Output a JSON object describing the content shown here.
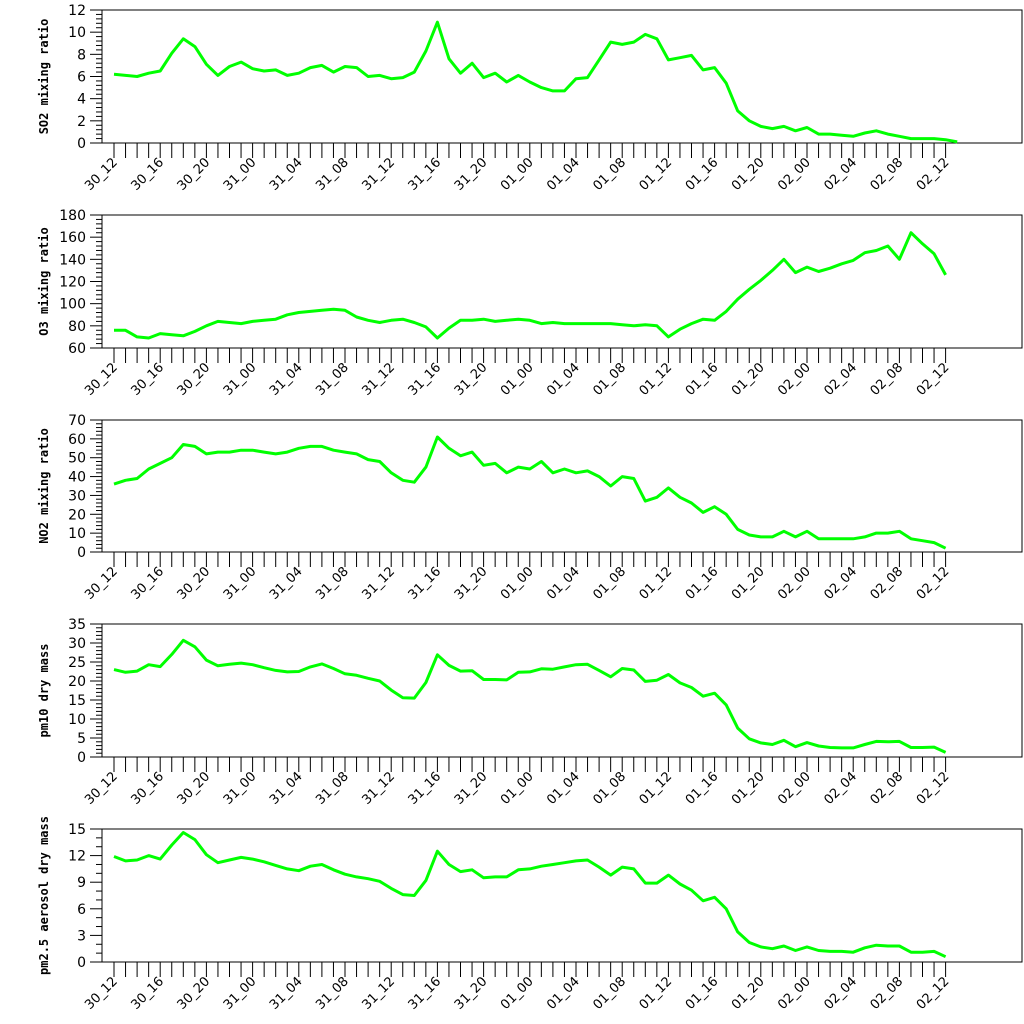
{
  "chart_data": [
    {
      "type": "line",
      "ylabel": "SO2 mixing ratio",
      "ylim": [
        0,
        12
      ],
      "yticks": [
        0,
        2,
        4,
        6,
        8,
        10,
        12
      ],
      "yminor": 4,
      "xticklabels": [
        "30_12",
        "30_16",
        "30_20",
        "31_00",
        "31_04",
        "31_08",
        "31_12",
        "31_16",
        "31_20",
        "01_00",
        "01_04",
        "01_08",
        "01_12",
        "01_16",
        "01_20",
        "02_00",
        "02_04",
        "02_08",
        "02_12"
      ],
      "color": "#00ff00",
      "series": [
        {
          "values": [
            6.2,
            6.1,
            6.0,
            6.3,
            6.5,
            8.1,
            9.4,
            8.7,
            7.1,
            6.1,
            6.9,
            7.3,
            6.7,
            6.5,
            6.6,
            6.1,
            6.3,
            6.8,
            7.0,
            6.4,
            6.9,
            6.8,
            6.0,
            6.1,
            5.8,
            5.9,
            6.4,
            8.3,
            10.9,
            7.6,
            6.3,
            7.2,
            5.9,
            6.3,
            5.5,
            6.1,
            5.5,
            5.0,
            4.7,
            4.7,
            5.8,
            5.9,
            7.5,
            9.1,
            8.9,
            9.1,
            9.8,
            9.4,
            7.5,
            7.7,
            7.9,
            6.6,
            6.8,
            5.4,
            2.9,
            2.0,
            1.5,
            1.3,
            1.5,
            1.1,
            1.4,
            0.8,
            0.8,
            0.7,
            0.6,
            0.9,
            1.1,
            0.8,
            0.6,
            0.4,
            0.4,
            0.4,
            0.3,
            0.1
          ]
        }
      ]
    },
    {
      "type": "line",
      "ylabel": "O3 mixing ratio",
      "ylim": [
        60,
        180
      ],
      "yticks": [
        60,
        80,
        100,
        120,
        140,
        160,
        180
      ],
      "yminor": 4,
      "xticklabels": [
        "30_12",
        "30_16",
        "30_20",
        "31_00",
        "31_04",
        "31_08",
        "31_12",
        "31_16",
        "31_20",
        "01_00",
        "01_04",
        "01_08",
        "01_12",
        "01_16",
        "01_20",
        "02_00",
        "02_04",
        "02_08",
        "02_12"
      ],
      "color": "#00ff00",
      "series": [
        {
          "values": [
            76,
            76,
            70,
            69,
            73,
            72,
            71,
            75,
            80,
            84,
            83,
            82,
            84,
            85,
            86,
            90,
            92,
            93,
            94,
            95,
            94,
            88,
            85,
            83,
            85,
            86,
            83,
            79,
            69,
            78,
            85,
            85,
            86,
            84,
            85,
            86,
            85,
            82,
            83,
            82,
            82,
            82,
            82,
            82,
            81,
            80,
            81,
            80,
            70,
            77,
            82,
            86,
            85,
            93,
            104,
            113,
            121,
            130,
            140,
            128,
            133,
            129,
            132,
            136,
            139,
            146,
            148,
            152,
            140,
            164,
            154,
            145,
            126
          ]
        }
      ]
    },
    {
      "type": "line",
      "ylabel": "NO2 mixing ratio",
      "ylim": [
        0,
        70
      ],
      "yticks": [
        0,
        10,
        20,
        30,
        40,
        50,
        60,
        70
      ],
      "yminor": 4,
      "xticklabels": [
        "30_12",
        "30_16",
        "30_20",
        "31_00",
        "31_04",
        "31_08",
        "31_12",
        "31_16",
        "31_20",
        "01_00",
        "01_04",
        "01_08",
        "01_12",
        "01_16",
        "01_20",
        "02_00",
        "02_04",
        "02_08",
        "02_12"
      ],
      "color": "#00ff00",
      "series": [
        {
          "values": [
            36,
            38,
            39,
            44,
            47,
            50,
            57,
            56,
            52,
            53,
            53,
            54,
            54,
            53,
            52,
            53,
            55,
            56,
            56,
            54,
            53,
            52,
            49,
            48,
            42,
            38,
            37,
            45,
            61,
            55,
            51,
            53,
            46,
            47,
            42,
            45,
            44,
            48,
            42,
            44,
            42,
            43,
            40,
            35,
            40,
            39,
            27,
            29,
            34,
            29,
            26,
            21,
            24,
            20,
            12,
            9,
            8,
            8,
            11,
            8,
            11,
            7,
            7,
            7,
            7,
            8,
            10,
            10,
            11,
            7,
            6,
            5,
            2
          ]
        }
      ]
    },
    {
      "type": "line",
      "ylabel": "pm10 dry mass",
      "ylim": [
        0,
        35
      ],
      "yticks": [
        0,
        5,
        10,
        15,
        20,
        25,
        30,
        35
      ],
      "yminor": 4,
      "xticklabels": [
        "30_12",
        "30_16",
        "30_20",
        "31_00",
        "31_04",
        "31_08",
        "31_12",
        "31_16",
        "31_20",
        "01_00",
        "01_04",
        "01_08",
        "01_12",
        "01_16",
        "01_20",
        "02_00",
        "02_04",
        "02_08",
        "02_12"
      ],
      "color": "#00ff00",
      "series": [
        {
          "values": [
            23,
            22.3,
            22.6,
            24.3,
            23.8,
            27,
            30.7,
            29,
            25.5,
            24,
            24.4,
            24.7,
            24.3,
            23.5,
            22.8,
            22.4,
            22.5,
            23.7,
            24.5,
            23.3,
            21.9,
            21.5,
            20.7,
            20,
            17.6,
            15.6,
            15.5,
            19.6,
            26.9,
            24.1,
            22.6,
            22.7,
            20.4,
            20.4,
            20.3,
            22.3,
            22.4,
            23.2,
            23.1,
            23.7,
            24.3,
            24.4,
            22.8,
            21.1,
            23.3,
            22.9,
            19.9,
            20.2,
            21.7,
            19.5,
            18.3,
            16,
            16.8,
            13.7,
            7.6,
            4.8,
            3.7,
            3.3,
            4.4,
            2.7,
            3.8,
            2.9,
            2.5,
            2.4,
            2.4,
            3.3,
            4.1,
            4.0,
            4.1,
            2.5,
            2.5,
            2.6,
            1.2
          ]
        }
      ]
    },
    {
      "type": "line",
      "ylabel": "pm2.5 aerosol dry mass",
      "ylim": [
        0,
        15
      ],
      "yticks": [
        0,
        3,
        6,
        9,
        12,
        15
      ],
      "yminor": 2,
      "xticklabels": [
        "30_12",
        "30_16",
        "30_20",
        "31_00",
        "31_04",
        "31_08",
        "31_12",
        "31_16",
        "31_20",
        "01_00",
        "01_04",
        "01_08",
        "01_12",
        "01_16",
        "01_20",
        "02_00",
        "02_04",
        "02_08",
        "02_12"
      ],
      "color": "#00ff00",
      "series": [
        {
          "values": [
            11.9,
            11.4,
            11.5,
            12.0,
            11.6,
            13.2,
            14.6,
            13.8,
            12.1,
            11.2,
            11.5,
            11.8,
            11.6,
            11.3,
            10.9,
            10.5,
            10.3,
            10.8,
            11.0,
            10.4,
            9.9,
            9.6,
            9.4,
            9.1,
            8.3,
            7.6,
            7.5,
            9.2,
            12.5,
            11.0,
            10.2,
            10.4,
            9.5,
            9.6,
            9.6,
            10.4,
            10.5,
            10.8,
            11.0,
            11.2,
            11.4,
            11.5,
            10.7,
            9.8,
            10.7,
            10.5,
            8.9,
            8.9,
            9.8,
            8.8,
            8.1,
            6.9,
            7.3,
            6.0,
            3.4,
            2.2,
            1.7,
            1.5,
            1.8,
            1.3,
            1.7,
            1.3,
            1.2,
            1.2,
            1.1,
            1.6,
            1.9,
            1.8,
            1.8,
            1.1,
            1.1,
            1.2,
            0.6
          ]
        }
      ]
    }
  ]
}
